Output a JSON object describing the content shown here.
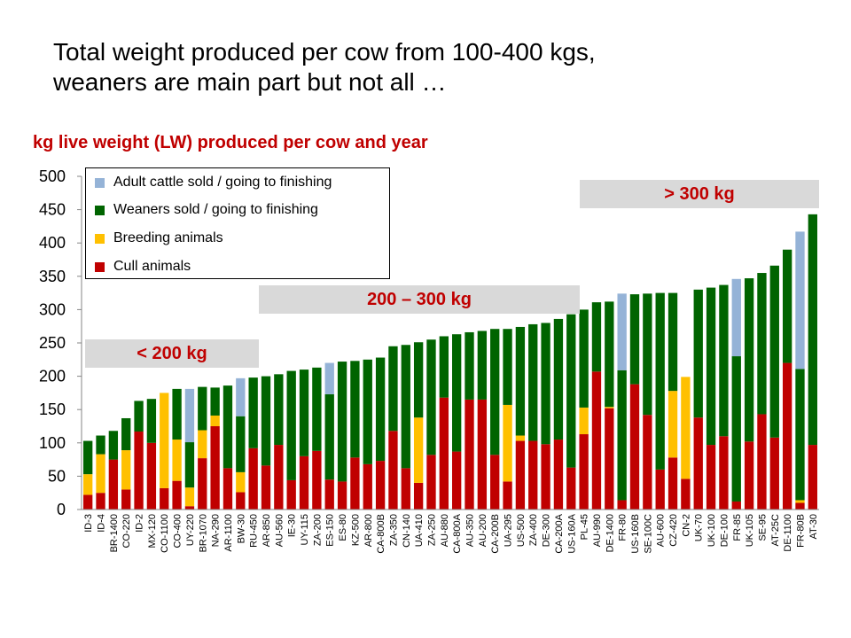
{
  "title_line1": "Total weight produced per cow from 100-400 kgs,",
  "title_line2": "weaners are main part but not all …",
  "chart_data": {
    "type": "bar",
    "stacked": true,
    "title": "kg live weight (LW) produced per cow and year",
    "ylim": [
      0,
      500
    ],
    "yticks": [
      0,
      50,
      100,
      150,
      200,
      250,
      300,
      350,
      400,
      450,
      500
    ],
    "legend_position": "top-left",
    "categories": [
      "ID-3",
      "ID-4",
      "BR-1400",
      "CO-220",
      "ID-2",
      "MX-120",
      "CO-1100",
      "CO-400",
      "UY-220",
      "BR-1070",
      "NA-290",
      "AR-1100",
      "BW-30",
      "RU-450",
      "AR-850",
      "AU-560",
      "IE-30",
      "UY-115",
      "ZA-200",
      "ES-150",
      "ES-80",
      "KZ-500",
      "AR-800",
      "CA-800B",
      "ZA-350",
      "CN-140",
      "UA-410",
      "ZA-250",
      "AU-880",
      "CA-800A",
      "AU-350",
      "AU-200",
      "CA-200B",
      "UA-295",
      "US-500",
      "ZA-400",
      "DE-300",
      "CA-200A",
      "US-160A",
      "PL-45",
      "AU-990",
      "DE-1400",
      "FR-80",
      "US-160B",
      "SE-100C",
      "AU-600",
      "CZ-420",
      "CN-2",
      "UK-70",
      "UK-100",
      "DE-100",
      "FR-85",
      "UK-105",
      "SE-95",
      "AT-25C",
      "DE-1100",
      "FR-80B",
      "AT-30"
    ],
    "series": [
      {
        "name": "Cull animals",
        "color": "#c00000",
        "values": [
          22,
          25,
          75,
          30,
          117,
          100,
          32,
          43,
          5,
          77,
          125,
          62,
          26,
          92,
          66,
          97,
          44,
          80,
          88,
          45,
          42,
          78,
          68,
          73,
          118,
          62,
          40,
          82,
          168,
          87,
          165,
          165,
          82,
          42,
          103,
          103,
          98,
          105,
          63,
          113,
          207,
          152,
          14,
          188,
          142,
          60,
          78,
          46,
          138,
          97,
          110,
          12,
          102,
          143,
          108,
          220,
          10,
          97
        ]
      },
      {
        "name": "Breeding animals",
        "color": "#ffc000",
        "values": [
          31,
          58,
          0,
          59,
          0,
          0,
          143,
          62,
          28,
          42,
          16,
          0,
          30,
          0,
          0,
          0,
          0,
          0,
          0,
          0,
          0,
          0,
          0,
          0,
          0,
          0,
          98,
          0,
          0,
          0,
          0,
          0,
          0,
          115,
          8,
          0,
          0,
          0,
          0,
          40,
          0,
          2,
          0,
          0,
          0,
          0,
          100,
          153,
          0,
          0,
          0,
          0,
          0,
          0,
          0,
          0,
          4,
          0
        ]
      },
      {
        "name": "Weaners sold / going to finishing",
        "color": "#006400",
        "values": [
          50,
          28,
          43,
          48,
          46,
          66,
          0,
          76,
          68,
          65,
          42,
          124,
          84,
          106,
          134,
          106,
          164,
          130,
          125,
          128,
          180,
          145,
          157,
          155,
          127,
          185,
          113,
          173,
          92,
          176,
          101,
          103,
          189,
          114,
          163,
          175,
          182,
          181,
          230,
          147,
          104,
          158,
          195,
          135,
          182,
          265,
          147,
          0,
          192,
          236,
          227,
          218,
          245,
          212,
          258,
          170,
          197,
          346
        ]
      },
      {
        "name": "Adult cattle sold / going to finishing",
        "color": "#95b3d7",
        "values": [
          0,
          0,
          0,
          0,
          0,
          0,
          0,
          0,
          80,
          0,
          0,
          0,
          57,
          0,
          0,
          0,
          0,
          0,
          0,
          47,
          0,
          0,
          0,
          0,
          0,
          0,
          0,
          0,
          0,
          0,
          0,
          0,
          0,
          0,
          0,
          0,
          0,
          0,
          0,
          0,
          0,
          0,
          115,
          0,
          0,
          0,
          0,
          0,
          0,
          0,
          0,
          116,
          0,
          0,
          0,
          0,
          206,
          0
        ]
      }
    ]
  },
  "legend": [
    {
      "label": "Adult cattle sold / going to finishing",
      "color": "#95b3d7"
    },
    {
      "label": "Weaners sold / going to finishing",
      "color": "#006400"
    },
    {
      "label": "Breeding animals",
      "color": "#ffc000"
    },
    {
      "label": "Cull animals",
      "color": "#c00000"
    }
  ],
  "ranges": [
    {
      "label": "< 200 kg"
    },
    {
      "label": "200 – 300 kg"
    },
    {
      "label": "> 300 kg"
    }
  ]
}
